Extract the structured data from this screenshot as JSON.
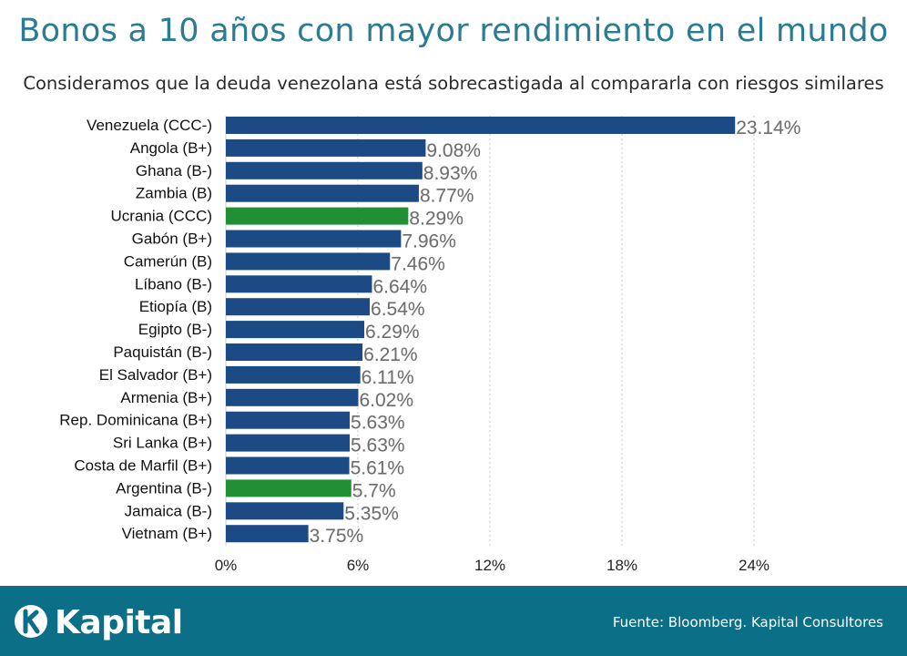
{
  "header": {
    "title": "Bonos a 10 años con mayor rendimiento en el mundo",
    "subtitle": "Consideramos que la deuda venezolana está sobrecastigada al compararla con riesgos similares"
  },
  "chart_data": {
    "type": "bar",
    "orientation": "horizontal",
    "categories": [
      "Venezuela (CCC-)",
      "Angola (B+)",
      "Ghana (B-)",
      "Zambia (B)",
      "Ucrania (CCC)",
      "Gabón (B+)",
      "Camerún (B)",
      "Líbano (B-)",
      "Etiopía (B)",
      "Egipto (B-)",
      "Paquistán (B-)",
      "El Salvador (B+)",
      "Armenia (B+)",
      "Rep. Dominicana (B+)",
      "Sri Lanka (B+)",
      "Costa de Marfil (B+)",
      "Argentina (B-)",
      "Jamaica (B-)",
      "Vietnam (B+)"
    ],
    "values": [
      23.14,
      9.08,
      8.93,
      8.77,
      8.29,
      7.96,
      7.46,
      6.64,
      6.54,
      6.29,
      6.21,
      6.11,
      6.02,
      5.63,
      5.63,
      5.61,
      5.7,
      5.35,
      3.75
    ],
    "value_labels": [
      "23.14%",
      "9.08%",
      "8.93%",
      "8.77%",
      "8.29%",
      "7.96%",
      "7.46%",
      "6.64%",
      "6.54%",
      "6.29%",
      "6.21%",
      "6.11%",
      "6.02%",
      "5.63%",
      "5.63%",
      "5.61%",
      "5.7%",
      "5.35%",
      "3.75%"
    ],
    "highlighted": [
      "Ucrania (CCC)",
      "Argentina (B-)"
    ],
    "xlim": [
      0,
      24
    ],
    "xticks": [
      0,
      6,
      12,
      18,
      24
    ],
    "xtick_labels": [
      "0%",
      "6%",
      "12%",
      "18%",
      "24%"
    ],
    "grid": "vertical-dashed",
    "colors": {
      "default": "#1b4a85",
      "highlight": "#219034",
      "grid": "#c8c8c8"
    }
  },
  "footer": {
    "brand": "Kapital",
    "brand_icon": "k-logo-icon",
    "source": "Fuente: Bloomberg. Kapital Consultores",
    "background": "#0c6f88"
  }
}
